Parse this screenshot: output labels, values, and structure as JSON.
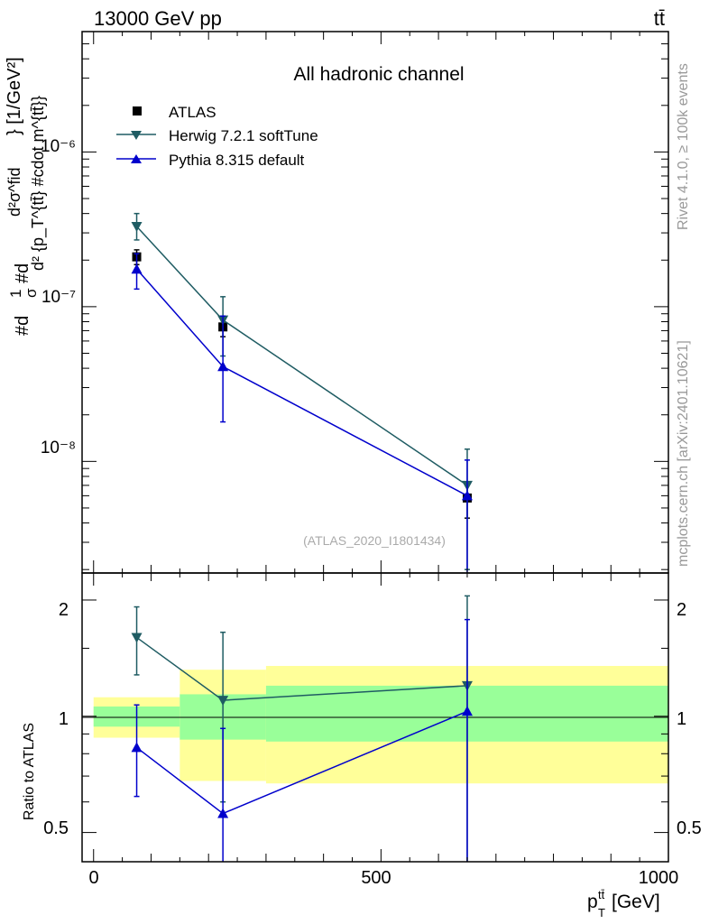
{
  "header": {
    "energy_label": "13000 GeV pp",
    "process_label": "tt̄"
  },
  "side_labels": {
    "rivet": "Rivet 4.1.0, ≥ 100k events",
    "mcplots": "mcplots.cern.ch [arXiv:2401.10621]"
  },
  "chart_data": [
    {
      "type": "scatter",
      "panel": "main",
      "title": "All hadronic channel",
      "ylabel": "#d1σ#d d²σ^{fid} / d² {p_T^{tt̄} #cdot m^{tt̄}} [1/GeV²]",
      "ylabel_parts": {
        "left": "#d",
        "frac_num": "1",
        "frac_den": "σ",
        "mid": "#d",
        "big_num": "d²σ^fid",
        "big_den": "d² {p_T^{tt̄} #cdot m^{tt̄}}",
        "unit": "} [1/GeV²]"
      },
      "yscale": "log",
      "ylim": [
        1.9e-09,
        6e-06
      ],
      "xlim": [
        -20,
        1000
      ],
      "y_ticks": [
        "10⁻⁶",
        "10⁻⁷",
        "10⁻⁸"
      ],
      "analysis_label": "(ATLAS_2020_I1801434)",
      "legend_position": "top-left",
      "legend": [
        "ATLAS",
        "Herwig 7.2.1 softTune",
        "Pythia 8.315 default"
      ],
      "series": [
        {
          "name": "ATLAS",
          "color": "#000000",
          "marker": "square",
          "x": [
            75,
            225,
            650
          ],
          "y": [
            2.1e-07,
            7.4e-08,
            5.8e-09
          ],
          "yerr_lo": [
            2.3e-08,
            1e-08,
            1.5e-09
          ],
          "yerr_hi": [
            2.3e-08,
            1e-08,
            1.5e-09
          ]
        },
        {
          "name": "Herwig 7.2.1 softTune",
          "color": "#1f5c63",
          "marker": "triangle-down",
          "x": [
            75,
            225,
            650
          ],
          "y": [
            3.3e-07,
            8.2e-08,
            7e-09
          ],
          "yerr_lo": [
            6e-08,
            3.4e-08,
            5e-09
          ],
          "yerr_hi": [
            7e-08,
            3.4e-08,
            5e-09
          ]
        },
        {
          "name": "Pythia 8.315 default",
          "color": "#0000cc",
          "marker": "triangle-up",
          "x": [
            75,
            225,
            650
          ],
          "y": [
            1.75e-07,
            4.1e-08,
            6e-09
          ],
          "yerr_lo": [
            4.5e-08,
            2.3e-08,
            4.2e-09
          ],
          "yerr_hi": [
            4.5e-08,
            4.6e-08,
            4.2e-09
          ]
        }
      ]
    },
    {
      "type": "scatter",
      "panel": "ratio",
      "ylabel": "Ratio to ATLAS",
      "xlabel": "p_T^{tt̄} [GeV]",
      "xlabel_parts": {
        "main": "p",
        "sub": "T",
        "sup": "tt̄",
        "unit": " [GeV]"
      },
      "yscale": "log",
      "ylim": [
        0.42,
        2.35
      ],
      "xlim": [
        -20,
        1000
      ],
      "x_ticks": [
        "0",
        "500",
        "1000"
      ],
      "y_ticks": [
        "2",
        "1",
        "0.5"
      ],
      "bands": [
        {
          "x_lo": 0,
          "x_hi": 150,
          "inner": [
            0.94,
            1.06
          ],
          "outer": [
            0.88,
            1.12
          ]
        },
        {
          "x_lo": 150,
          "x_hi": 300,
          "inner": [
            0.87,
            1.14
          ],
          "outer": [
            0.68,
            1.32
          ]
        },
        {
          "x_lo": 300,
          "x_hi": 1000,
          "inner": [
            0.86,
            1.2
          ],
          "outer": [
            0.67,
            1.35
          ]
        }
      ],
      "series": [
        {
          "name": "Herwig 7.2.1 softTune",
          "color": "#1f5c63",
          "marker": "triangle-down",
          "x": [
            75,
            225,
            650
          ],
          "y": [
            1.6,
            1.1,
            1.2
          ],
          "yerr_lo": [
            0.32,
            0.5,
            0.9
          ],
          "yerr_hi": [
            0.32,
            0.55,
            0.85
          ]
        },
        {
          "name": "Pythia 8.315 default",
          "color": "#0000cc",
          "marker": "triangle-up",
          "x": [
            75,
            225,
            650
          ],
          "y": [
            0.83,
            0.56,
            1.03
          ],
          "yerr_lo": [
            0.21,
            0.31,
            0.8
          ],
          "yerr_hi": [
            0.24,
            0.37,
            0.75
          ]
        }
      ]
    }
  ]
}
